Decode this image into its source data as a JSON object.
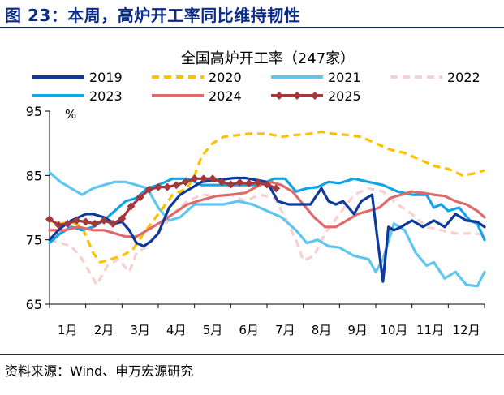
{
  "figure_title": "图 23：本周，高炉开工率同比维持韧性",
  "source": "资料来源：Wind、申万宏源研究",
  "chart_data": {
    "type": "line",
    "title": "全国高炉开工率（247家）",
    "ylabel": "%",
    "ylim": [
      65,
      95
    ],
    "yticks": [
      "65",
      "75",
      "85",
      "95"
    ],
    "xlim": [
      1,
      13
    ],
    "xticks": [
      "1月",
      "2月",
      "3月",
      "4月",
      "5月",
      "6月",
      "7月",
      "8月",
      "9月",
      "10月",
      "11月",
      "12月"
    ],
    "legend": "top, 3 columns",
    "grid": false,
    "series": [
      {
        "name": "2019",
        "color": "#0d3a9a",
        "style": "solid",
        "width": 3.2,
        "x": [
          1.0,
          1.3,
          1.6,
          2.0,
          2.2,
          2.5,
          2.8,
          3.0,
          3.2,
          3.4,
          3.6,
          3.8,
          4.0,
          4.3,
          4.6,
          4.9,
          5.2,
          5.5,
          5.8,
          6.1,
          6.4,
          6.7,
          7.0,
          7.3,
          7.6,
          7.9,
          8.2,
          8.5,
          8.7,
          8.9,
          9.1,
          9.4,
          9.6,
          9.9,
          10.05,
          10.2,
          10.35,
          10.5,
          10.7,
          11.0,
          11.3,
          11.6,
          11.9,
          12.2,
          12.5,
          12.8,
          13.0
        ],
        "y": [
          75,
          76.8,
          78,
          79,
          79,
          78.5,
          77.5,
          77.8,
          76.5,
          74.5,
          74.0,
          74.8,
          76,
          80,
          82,
          83,
          84,
          84.2,
          84.4,
          84.6,
          84.6,
          84.3,
          84,
          81,
          80.5,
          80.5,
          80.5,
          83,
          81,
          80.5,
          81,
          79,
          81,
          82,
          75,
          68.5,
          77,
          76.5,
          77,
          78,
          77,
          78,
          77,
          79,
          78,
          77.8,
          77
        ]
      },
      {
        "name": "2020",
        "color": "#ffc000",
        "style": "dashed",
        "width": 3.2,
        "x": [
          1.0,
          1.3,
          1.6,
          1.9,
          2.2,
          2.4,
          2.7,
          3.0,
          3.3,
          3.6,
          4.0,
          4.4,
          4.8,
          5.0,
          5.2,
          5.5,
          5.8,
          6.1,
          6.5,
          7.0,
          7.4,
          7.8,
          8.2,
          8.5,
          8.8,
          9.2,
          9.6,
          10.0,
          10.4,
          10.8,
          11.2,
          11.6,
          12.0,
          12.4,
          12.7,
          13.0
        ],
        "y": [
          78,
          77.5,
          77.8,
          77,
          73,
          71.5,
          72,
          72.5,
          73.5,
          76,
          79,
          82,
          83,
          85,
          88,
          90,
          91,
          91.2,
          91.5,
          91.5,
          91,
          91.3,
          91.5,
          91.8,
          91.5,
          91.3,
          91,
          90,
          89,
          88.5,
          87.5,
          86.5,
          86,
          85,
          85.3,
          85.8
        ]
      },
      {
        "name": "2021",
        "color": "#5ec6f0",
        "style": "solid",
        "width": 3.2,
        "x": [
          1.0,
          1.3,
          1.6,
          1.9,
          2.2,
          2.5,
          2.8,
          3.1,
          3.4,
          3.7,
          4.0,
          4.3,
          4.6,
          5.0,
          5.4,
          5.8,
          6.2,
          6.6,
          7.0,
          7.4,
          7.8,
          8.1,
          8.4,
          8.7,
          9.0,
          9.4,
          9.8,
          10.0,
          10.2,
          10.5,
          10.8,
          11.1,
          11.4,
          11.6,
          11.9,
          12.2,
          12.5,
          12.8,
          13.0
        ],
        "y": [
          85.5,
          84,
          83,
          82,
          83,
          83.5,
          84,
          84,
          83.5,
          83,
          80,
          78,
          78.5,
          80.5,
          80.5,
          80.5,
          81,
          80.5,
          79.5,
          78.5,
          76.5,
          74.5,
          75.0,
          74,
          73.8,
          72.5,
          72,
          70,
          72,
          77.5,
          76.5,
          73,
          71,
          71.5,
          69,
          70,
          68,
          67.8,
          70
        ]
      },
      {
        "name": "2022",
        "color": "#f8d0d0",
        "style": "dashed",
        "width": 3.2,
        "x": [
          1.0,
          1.3,
          1.6,
          1.9,
          2.1,
          2.3,
          2.6,
          2.9,
          3.2,
          3.4,
          3.7,
          4.0,
          4.4,
          4.8,
          5.2,
          5.6,
          6.0,
          6.4,
          6.8,
          7.2,
          7.5,
          7.8,
          8.0,
          8.3,
          8.6,
          9.0,
          9.4,
          9.8,
          10.2,
          10.6,
          11.0,
          11.4,
          11.8,
          12.2,
          12.6,
          13.0
        ],
        "y": [
          75,
          74.5,
          74,
          72,
          70,
          68,
          71,
          72,
          70,
          73,
          74,
          76,
          79,
          81,
          82,
          81.8,
          82,
          81,
          82,
          81.5,
          78.5,
          75,
          71.8,
          72.5,
          76,
          79,
          82,
          83,
          82.5,
          80.5,
          79,
          77,
          76.5,
          76,
          76,
          75.8
        ]
      },
      {
        "name": "2023",
        "color": "#12a5e3",
        "style": "solid",
        "width": 3.2,
        "x": [
          1.0,
          1.3,
          1.6,
          1.9,
          2.2,
          2.5,
          2.8,
          3.1,
          3.4,
          3.7,
          4.0,
          4.4,
          4.8,
          5.2,
          5.6,
          6.0,
          6.4,
          6.8,
          7.2,
          7.5,
          7.8,
          8.1,
          8.4,
          8.7,
          9.0,
          9.4,
          9.8,
          10.2,
          10.6,
          11.0,
          11.4,
          11.6,
          11.8,
          12.0,
          12.3,
          12.6,
          12.8,
          13.0
        ],
        "y": [
          74.5,
          76,
          77,
          76.5,
          77,
          78,
          79.5,
          81,
          81.5,
          83,
          83.5,
          84.5,
          84.5,
          83.5,
          83.5,
          83.5,
          83.5,
          83.5,
          84.5,
          84.5,
          82.5,
          83,
          83.2,
          84,
          83.8,
          84.5,
          84,
          83.5,
          82.5,
          82,
          82,
          80,
          80.5,
          79.5,
          80,
          78,
          77.5,
          75
        ]
      },
      {
        "name": "2024",
        "color": "#e06a6a",
        "style": "solid",
        "width": 3.2,
        "x": [
          1.0,
          1.4,
          1.8,
          2.2,
          2.5,
          2.8,
          3.1,
          3.4,
          3.7,
          4.0,
          4.4,
          4.8,
          5.2,
          5.6,
          6.0,
          6.4,
          6.8,
          7.1,
          7.4,
          7.7,
          8.0,
          8.3,
          8.6,
          8.9,
          9.2,
          9.5,
          9.8,
          10.1,
          10.4,
          10.7,
          11.0,
          11.3,
          11.6,
          11.9,
          12.2,
          12.5,
          12.8,
          13.0
        ],
        "y": [
          76.5,
          76.5,
          77,
          76.5,
          76.5,
          76,
          75.5,
          75.5,
          76.5,
          77.5,
          79,
          80.5,
          81.2,
          81.8,
          82,
          82.3,
          83.5,
          84,
          83.5,
          82.5,
          80.5,
          78.5,
          77,
          77,
          78,
          79,
          79.5,
          80,
          81.5,
          82,
          82.5,
          82.3,
          82,
          81.8,
          81,
          80.5,
          79.5,
          78.5
        ]
      },
      {
        "name": "2025",
        "color": "#a0383c",
        "style": "solid",
        "width": 3.2,
        "marker": "diamond",
        "x": [
          1.0,
          1.25,
          1.5,
          1.75,
          2.0,
          2.25,
          2.5,
          2.75,
          3.0,
          3.25,
          3.5,
          3.75,
          4.0,
          4.25,
          4.5,
          4.75,
          5.0,
          5.25,
          5.5,
          5.75,
          6.0,
          6.25,
          6.5,
          6.75,
          7.0,
          7.25
        ],
        "y": [
          78.2,
          77.3,
          77.5,
          78,
          77.8,
          77.5,
          78,
          77.5,
          78.3,
          80.2,
          81.6,
          82.8,
          83.2,
          83.2,
          83.5,
          84,
          84.5,
          84.5,
          84.5,
          84,
          83.6,
          83.9,
          83.8,
          83.9,
          83.6,
          83.0
        ]
      }
    ]
  }
}
